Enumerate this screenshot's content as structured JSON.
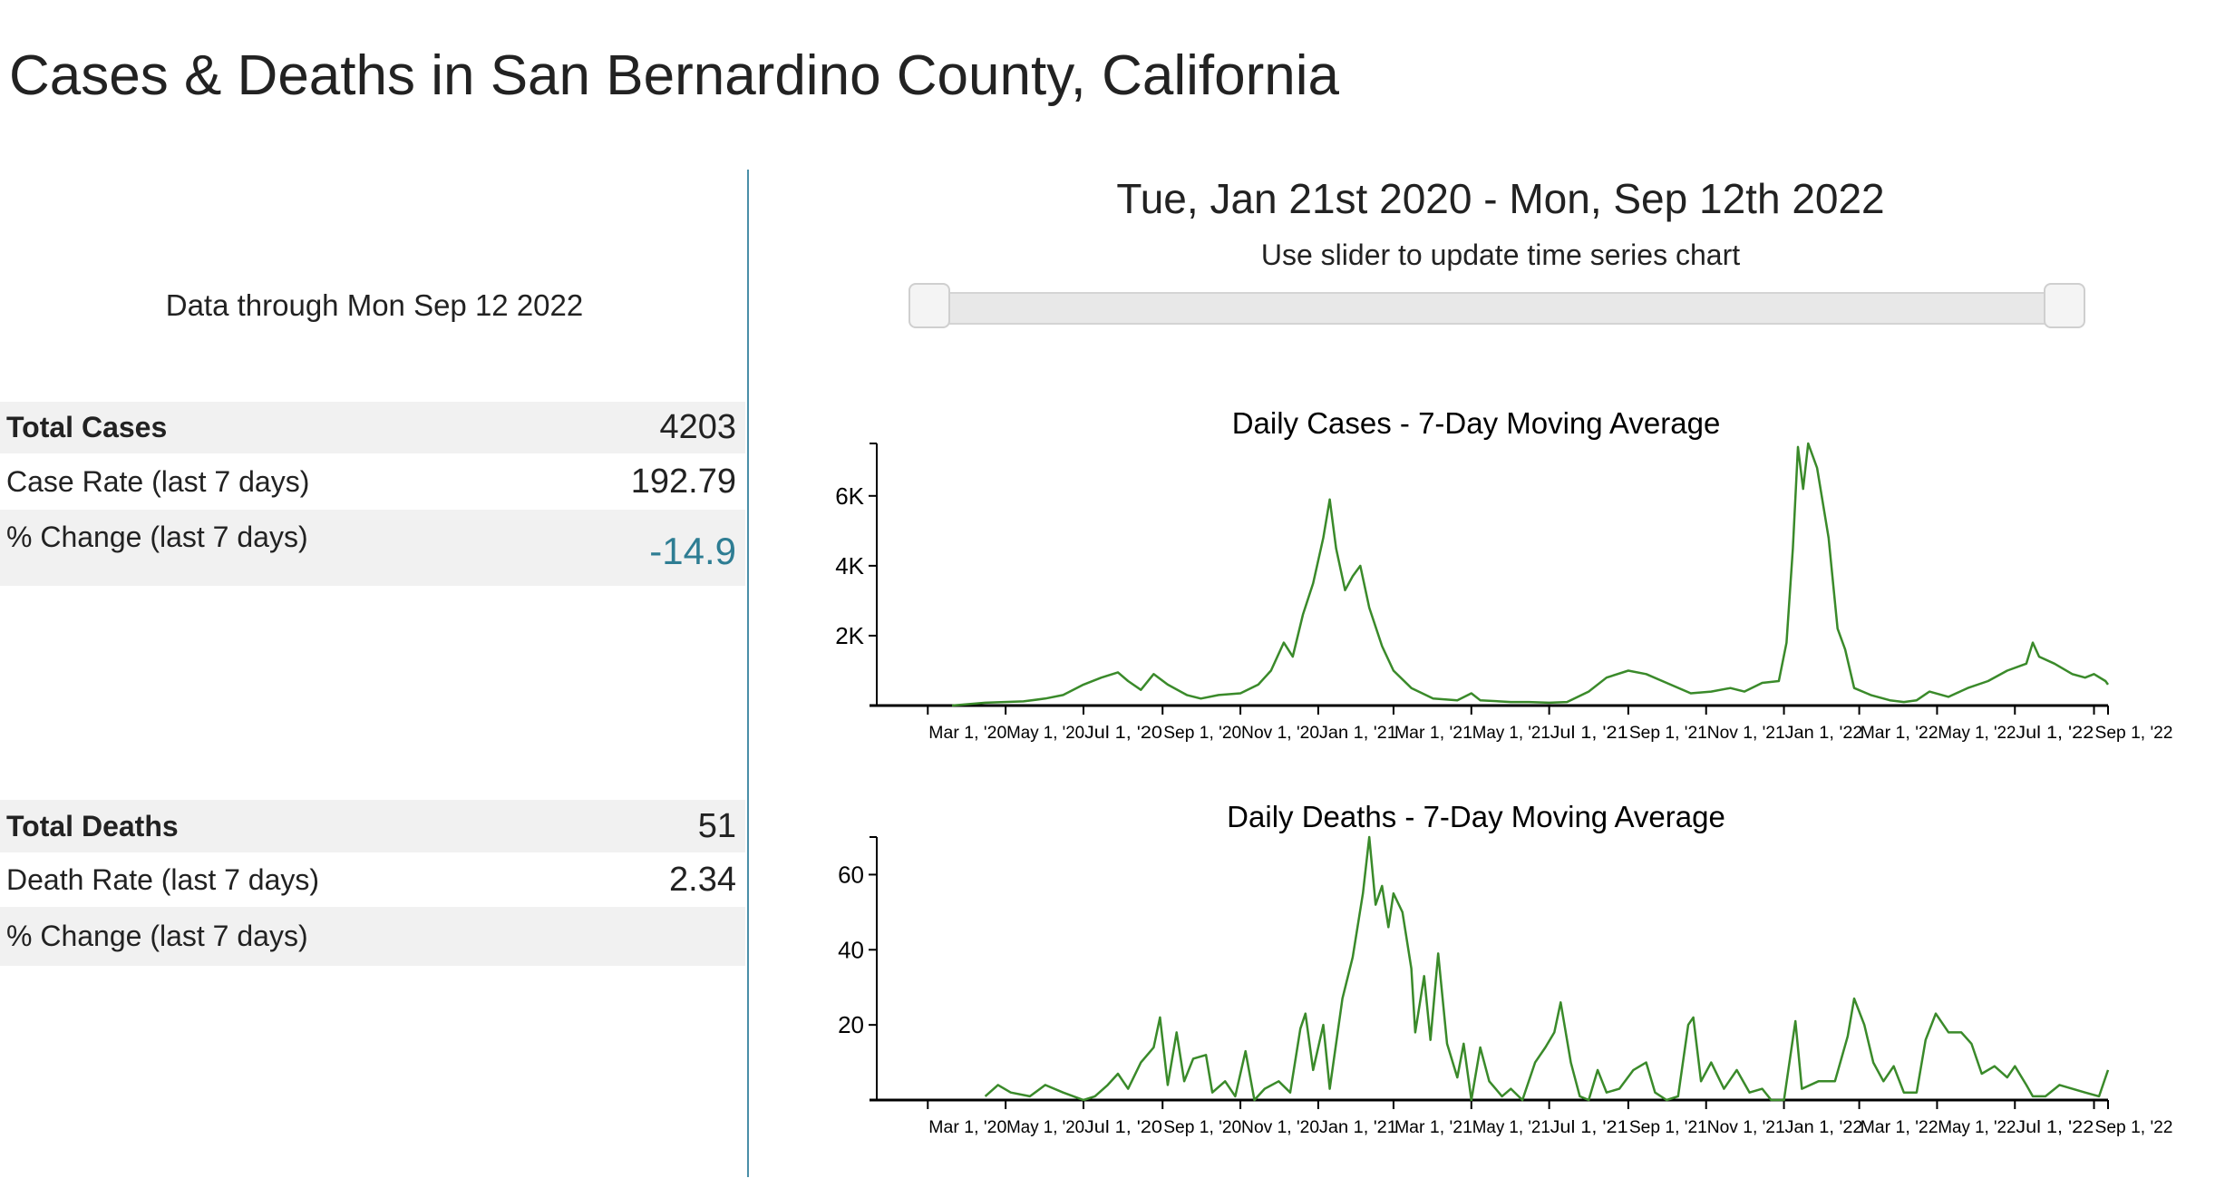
{
  "page_title": "Cases & Deaths in San Bernardino County, California",
  "data_through": "Data through Mon Sep 12 2022",
  "stats": {
    "cases": [
      {
        "label": "Total Cases",
        "value": "4203"
      },
      {
        "label": "Case Rate (last 7 days)",
        "value": "192.79"
      },
      {
        "label": "% Change (last 7 days)",
        "value": "-14.9"
      }
    ],
    "deaths": [
      {
        "label": "Total Deaths",
        "value": "51"
      },
      {
        "label": "Death Rate (last 7 days)",
        "value": "2.34"
      },
      {
        "label": "% Change (last 7 days)",
        "value": ""
      }
    ]
  },
  "colors": {
    "accent": "#2e7d93",
    "line": "#3a8a2a",
    "divider": "#4a8fa8"
  },
  "range": {
    "label": "Tue, Jan 21st 2020 - Mon, Sep 12th 2022",
    "hint": "Use slider to update time series chart",
    "slider_start_fraction": 0,
    "slider_end_fraction": 1
  },
  "chart_data": [
    {
      "type": "line",
      "title": "Daily Cases - 7-Day Moving Average",
      "xlim": [
        "2020-01-21",
        "2022-09-12"
      ],
      "ylim": [
        0,
        7500
      ],
      "yticks": [
        {
          "v": 2000,
          "label": "2K"
        },
        {
          "v": 4000,
          "label": "4K"
        },
        {
          "v": 6000,
          "label": "6K"
        }
      ],
      "xticks": [
        {
          "d": "2020-03-01",
          "label": "Mar 1, '20"
        },
        {
          "d": "2020-05-01",
          "label": "May 1, '20"
        },
        {
          "d": "2020-07-01",
          "label": "Jul 1, '20"
        },
        {
          "d": "2020-09-01",
          "label": "Sep 1, '20"
        },
        {
          "d": "2020-11-01",
          "label": "Nov 1, '20"
        },
        {
          "d": "2021-01-01",
          "label": "Jan 1, '21"
        },
        {
          "d": "2021-03-01",
          "label": "Mar 1, '21"
        },
        {
          "d": "2021-05-01",
          "label": "May 1, '21"
        },
        {
          "d": "2021-07-01",
          "label": "Jul 1, '21"
        },
        {
          "d": "2021-09-01",
          "label": "Sep 1, '21"
        },
        {
          "d": "2021-11-01",
          "label": "Nov 1, '21"
        },
        {
          "d": "2022-01-01",
          "label": "Jan 1, '22"
        },
        {
          "d": "2022-03-01",
          "label": "Mar 1, '22"
        },
        {
          "d": "2022-05-01",
          "label": "May 1, '22"
        },
        {
          "d": "2022-07-01",
          "label": "Jul 1, '22"
        },
        {
          "d": "2022-09-01",
          "label": "Sep 1, '22"
        }
      ],
      "series": [
        {
          "name": "Daily Cases",
          "points": [
            [
              "2020-03-20",
              0
            ],
            [
              "2020-04-15",
              80
            ],
            [
              "2020-05-15",
              120
            ],
            [
              "2020-06-01",
              200
            ],
            [
              "2020-06-15",
              300
            ],
            [
              "2020-07-01",
              600
            ],
            [
              "2020-07-15",
              800
            ],
            [
              "2020-07-28",
              950
            ],
            [
              "2020-08-05",
              700
            ],
            [
              "2020-08-15",
              450
            ],
            [
              "2020-08-25",
              900
            ],
            [
              "2020-09-05",
              600
            ],
            [
              "2020-09-20",
              300
            ],
            [
              "2020-10-01",
              200
            ],
            [
              "2020-10-15",
              300
            ],
            [
              "2020-11-01",
              350
            ],
            [
              "2020-11-15",
              600
            ],
            [
              "2020-11-25",
              1000
            ],
            [
              "2020-12-05",
              1800
            ],
            [
              "2020-12-12",
              1400
            ],
            [
              "2020-12-20",
              2600
            ],
            [
              "2020-12-28",
              3500
            ],
            [
              "2021-01-05",
              4800
            ],
            [
              "2021-01-10",
              5900
            ],
            [
              "2021-01-15",
              4500
            ],
            [
              "2021-01-22",
              3300
            ],
            [
              "2021-01-28",
              3700
            ],
            [
              "2021-02-03",
              4000
            ],
            [
              "2021-02-10",
              2800
            ],
            [
              "2021-02-20",
              1700
            ],
            [
              "2021-03-01",
              1000
            ],
            [
              "2021-03-15",
              500
            ],
            [
              "2021-04-01",
              200
            ],
            [
              "2021-04-20",
              150
            ],
            [
              "2021-05-01",
              350
            ],
            [
              "2021-05-08",
              150
            ],
            [
              "2021-06-01",
              100
            ],
            [
              "2021-06-15",
              100
            ],
            [
              "2021-07-01",
              80
            ],
            [
              "2021-07-15",
              100
            ],
            [
              "2021-08-01",
              400
            ],
            [
              "2021-08-15",
              800
            ],
            [
              "2021-09-01",
              1000
            ],
            [
              "2021-09-15",
              900
            ],
            [
              "2021-10-01",
              650
            ],
            [
              "2021-10-20",
              350
            ],
            [
              "2021-11-05",
              400
            ],
            [
              "2021-11-20",
              500
            ],
            [
              "2021-12-01",
              400
            ],
            [
              "2021-12-15",
              650
            ],
            [
              "2021-12-28",
              700
            ],
            [
              "2022-01-03",
              1800
            ],
            [
              "2022-01-08",
              4500
            ],
            [
              "2022-01-12",
              7400
            ],
            [
              "2022-01-16",
              6200
            ],
            [
              "2022-01-20",
              7500
            ],
            [
              "2022-01-27",
              6800
            ],
            [
              "2022-02-05",
              4800
            ],
            [
              "2022-02-12",
              2200
            ],
            [
              "2022-02-18",
              1600
            ],
            [
              "2022-02-25",
              500
            ],
            [
              "2022-03-10",
              300
            ],
            [
              "2022-03-25",
              150
            ],
            [
              "2022-04-05",
              100
            ],
            [
              "2022-04-15",
              150
            ],
            [
              "2022-04-25",
              400
            ],
            [
              "2022-05-10",
              250
            ],
            [
              "2022-05-25",
              500
            ],
            [
              "2022-06-10",
              700
            ],
            [
              "2022-06-25",
              1000
            ],
            [
              "2022-07-10",
              1200
            ],
            [
              "2022-07-15",
              1800
            ],
            [
              "2022-07-20",
              1400
            ],
            [
              "2022-08-01",
              1200
            ],
            [
              "2022-08-15",
              900
            ],
            [
              "2022-08-25",
              800
            ],
            [
              "2022-09-01",
              900
            ],
            [
              "2022-09-10",
              700
            ],
            [
              "2022-09-12",
              600
            ]
          ]
        }
      ]
    },
    {
      "type": "line",
      "title": "Daily Deaths - 7-Day Moving Average",
      "xlim": [
        "2020-01-21",
        "2022-09-12"
      ],
      "ylim": [
        0,
        70
      ],
      "yticks": [
        {
          "v": 20,
          "label": "20"
        },
        {
          "v": 40,
          "label": "40"
        },
        {
          "v": 60,
          "label": "60"
        }
      ],
      "xticks": [
        {
          "d": "2020-03-01",
          "label": "Mar 1, '20"
        },
        {
          "d": "2020-05-01",
          "label": "May 1, '20"
        },
        {
          "d": "2020-07-01",
          "label": "Jul 1, '20"
        },
        {
          "d": "2020-09-01",
          "label": "Sep 1, '20"
        },
        {
          "d": "2020-11-01",
          "label": "Nov 1, '20"
        },
        {
          "d": "2021-01-01",
          "label": "Jan 1, '21"
        },
        {
          "d": "2021-03-01",
          "label": "Mar 1, '21"
        },
        {
          "d": "2021-05-01",
          "label": "May 1, '21"
        },
        {
          "d": "2021-07-01",
          "label": "Jul 1, '21"
        },
        {
          "d": "2021-09-01",
          "label": "Sep 1, '21"
        },
        {
          "d": "2021-11-01",
          "label": "Nov 1, '21"
        },
        {
          "d": "2022-01-01",
          "label": "Jan 1, '22"
        },
        {
          "d": "2022-03-01",
          "label": "Mar 1, '22"
        },
        {
          "d": "2022-05-01",
          "label": "May 1, '22"
        },
        {
          "d": "2022-07-01",
          "label": "Jul 1, '22"
        },
        {
          "d": "2022-09-01",
          "label": "Sep 1, '22"
        }
      ],
      "series": [
        {
          "name": "Daily Deaths",
          "points": [
            [
              "2020-04-15",
              1
            ],
            [
              "2020-04-25",
              4
            ],
            [
              "2020-05-05",
              2
            ],
            [
              "2020-05-20",
              1
            ],
            [
              "2020-06-01",
              4
            ],
            [
              "2020-06-15",
              2
            ],
            [
              "2020-07-01",
              0
            ],
            [
              "2020-07-10",
              1
            ],
            [
              "2020-07-20",
              4
            ],
            [
              "2020-07-28",
              7
            ],
            [
              "2020-08-05",
              3
            ],
            [
              "2020-08-15",
              10
            ],
            [
              "2020-08-25",
              14
            ],
            [
              "2020-08-30",
              22
            ],
            [
              "2020-09-05",
              4
            ],
            [
              "2020-09-12",
              18
            ],
            [
              "2020-09-18",
              5
            ],
            [
              "2020-09-25",
              11
            ],
            [
              "2020-10-05",
              12
            ],
            [
              "2020-10-10",
              2
            ],
            [
              "2020-10-20",
              5
            ],
            [
              "2020-10-28",
              1
            ],
            [
              "2020-11-05",
              13
            ],
            [
              "2020-11-12",
              0
            ],
            [
              "2020-11-20",
              3
            ],
            [
              "2020-12-01",
              5
            ],
            [
              "2020-12-10",
              2
            ],
            [
              "2020-12-18",
              19
            ],
            [
              "2020-12-22",
              23
            ],
            [
              "2020-12-28",
              8
            ],
            [
              "2021-01-05",
              20
            ],
            [
              "2021-01-10",
              3
            ],
            [
              "2021-01-20",
              27
            ],
            [
              "2021-01-28",
              38
            ],
            [
              "2021-02-05",
              55
            ],
            [
              "2021-02-10",
              70
            ],
            [
              "2021-02-15",
              52
            ],
            [
              "2021-02-20",
              57
            ],
            [
              "2021-02-25",
              46
            ],
            [
              "2021-03-01",
              55
            ],
            [
              "2021-03-08",
              50
            ],
            [
              "2021-03-15",
              35
            ],
            [
              "2021-03-18",
              18
            ],
            [
              "2021-03-25",
              33
            ],
            [
              "2021-03-30",
              16
            ],
            [
              "2021-04-05",
              39
            ],
            [
              "2021-04-12",
              15
            ],
            [
              "2021-04-20",
              6
            ],
            [
              "2021-04-25",
              15
            ],
            [
              "2021-05-01",
              0
            ],
            [
              "2021-05-08",
              14
            ],
            [
              "2021-05-15",
              5
            ],
            [
              "2021-05-25",
              1
            ],
            [
              "2021-06-01",
              3
            ],
            [
              "2021-06-10",
              0
            ],
            [
              "2021-06-20",
              10
            ],
            [
              "2021-06-28",
              14
            ],
            [
              "2021-07-05",
              18
            ],
            [
              "2021-07-10",
              26
            ],
            [
              "2021-07-18",
              10
            ],
            [
              "2021-07-25",
              1
            ],
            [
              "2021-08-01",
              0
            ],
            [
              "2021-08-08",
              8
            ],
            [
              "2021-08-15",
              2
            ],
            [
              "2021-08-25",
              3
            ],
            [
              "2021-09-05",
              8
            ],
            [
              "2021-09-15",
              10
            ],
            [
              "2021-09-22",
              2
            ],
            [
              "2021-10-01",
              0
            ],
            [
              "2021-10-10",
              1
            ],
            [
              "2021-10-18",
              20
            ],
            [
              "2021-10-22",
              22
            ],
            [
              "2021-10-28",
              5
            ],
            [
              "2021-11-05",
              10
            ],
            [
              "2021-11-15",
              3
            ],
            [
              "2021-11-25",
              8
            ],
            [
              "2021-12-05",
              2
            ],
            [
              "2021-12-15",
              3
            ],
            [
              "2021-12-22",
              0
            ],
            [
              "2022-01-01",
              0
            ],
            [
              "2022-01-10",
              21
            ],
            [
              "2022-01-15",
              3
            ],
            [
              "2022-01-28",
              5
            ],
            [
              "2022-02-10",
              5
            ],
            [
              "2022-02-20",
              17
            ],
            [
              "2022-02-25",
              27
            ],
            [
              "2022-03-05",
              20
            ],
            [
              "2022-03-12",
              10
            ],
            [
              "2022-03-20",
              5
            ],
            [
              "2022-03-28",
              9
            ],
            [
              "2022-04-05",
              2
            ],
            [
              "2022-04-15",
              2
            ],
            [
              "2022-04-22",
              16
            ],
            [
              "2022-04-30",
              23
            ],
            [
              "2022-05-10",
              18
            ],
            [
              "2022-05-20",
              18
            ],
            [
              "2022-05-28",
              15
            ],
            [
              "2022-06-05",
              7
            ],
            [
              "2022-06-15",
              9
            ],
            [
              "2022-06-25",
              6
            ],
            [
              "2022-07-01",
              9
            ],
            [
              "2022-07-10",
              4
            ],
            [
              "2022-07-15",
              1
            ],
            [
              "2022-07-25",
              1
            ],
            [
              "2022-08-05",
              4
            ],
            [
              "2022-08-15",
              3
            ],
            [
              "2022-08-25",
              2
            ],
            [
              "2022-09-05",
              1
            ],
            [
              "2022-09-12",
              8
            ]
          ]
        }
      ]
    }
  ]
}
